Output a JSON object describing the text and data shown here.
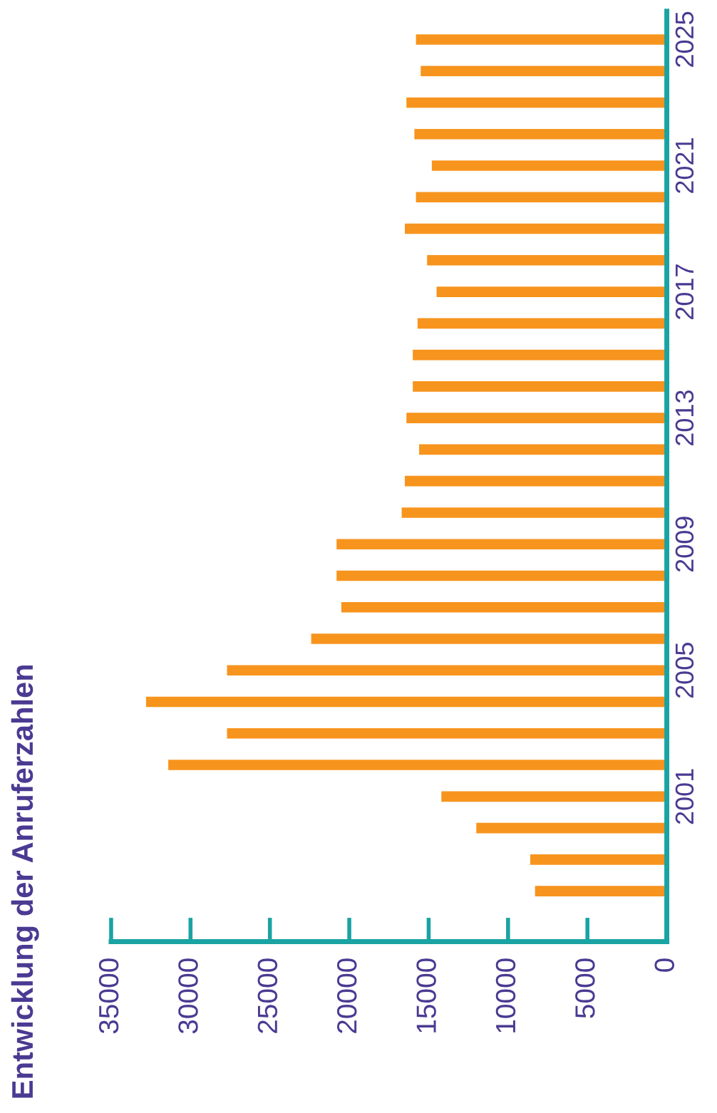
{
  "chart_data": {
    "type": "bar",
    "title": "Entwicklung der Anruferzahlen",
    "orientation": "horizontal",
    "categories": [
      "2025",
      null,
      null,
      null,
      "2021",
      null,
      null,
      null,
      "2017",
      null,
      null,
      null,
      "2013",
      null,
      null,
      null,
      "2009",
      null,
      null,
      null,
      "2005",
      null,
      null,
      null,
      "2001",
      null,
      null,
      null
    ],
    "values": [
      15800,
      15500,
      16400,
      15900,
      14800,
      15800,
      16500,
      15100,
      14500,
      15700,
      16000,
      16000,
      16400,
      15600,
      16500,
      16700,
      20800,
      20800,
      20500,
      22400,
      27700,
      32800,
      27700,
      31400,
      14200,
      12000,
      8600,
      8300
    ],
    "color": "#f7941d",
    "xlim": [
      35000,
      0
    ],
    "xticks": [
      0,
      5000,
      10000,
      15000,
      20000,
      25000,
      30000,
      35000
    ],
    "grid": false,
    "legend": false
  }
}
